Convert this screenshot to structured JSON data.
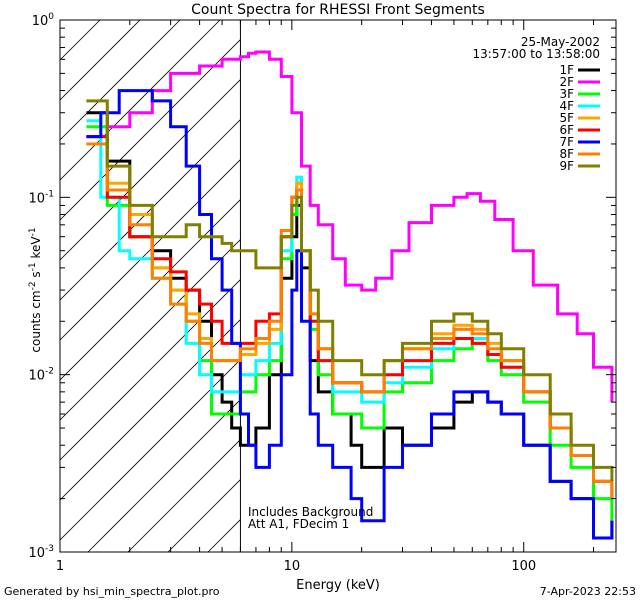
{
  "chart_data": {
    "type": "line",
    "title": "Count Spectra for RHESSI Front Segments",
    "xlabel": "Energy (keV)",
    "ylabel": "counts cm-2 s-1 keV-1",
    "ylabel_parts": {
      "base": "counts cm",
      "e1": "-2",
      "s": " s",
      "e2": "-1",
      "k": " keV",
      "e3": "-1"
    },
    "xscale": "log",
    "yscale": "log",
    "xlim": [
      1,
      250
    ],
    "ylim": [
      0.001,
      1
    ],
    "x_ticks": [
      {
        "value": 1,
        "label": "1"
      },
      {
        "value": 10,
        "label": "10"
      },
      {
        "value": 100,
        "label": "100"
      }
    ],
    "y_ticks": [
      {
        "value": 0.001,
        "base": "10",
        "exp": "-3"
      },
      {
        "value": 0.01,
        "base": "10",
        "exp": "-2"
      },
      {
        "value": 0.1,
        "base": "10",
        "exp": "-1"
      },
      {
        "value": 1,
        "base": "10",
        "exp": "0"
      }
    ],
    "date": "25-May-2002",
    "time_range": "13:57:00 to 13:58:00",
    "hatched_region_keV": [
      1,
      6
    ],
    "annotation_lines": [
      "Includes Background",
      "Att A1, FDecim 1"
    ],
    "legend_position": "top-right",
    "series": [
      {
        "name": "1F",
        "color": "#000000",
        "level": 0.2
      },
      {
        "name": "2F",
        "color": "#ff00ff",
        "level": 0.6
      },
      {
        "name": "3F",
        "color": "#00ff00",
        "level": 0.25
      },
      {
        "name": "4F",
        "color": "#00ffff",
        "level": 0.12
      },
      {
        "name": "5F",
        "color": "#ffa500",
        "level": 0.2
      },
      {
        "name": "6F",
        "color": "#ff0000",
        "level": 0.22
      },
      {
        "name": "7F",
        "color": "#0000ff",
        "level": 0.4
      },
      {
        "name": "8F",
        "color": "#ff8000",
        "level": 0.18
      },
      {
        "name": "9F",
        "color": "#808000",
        "level": 0.35
      }
    ],
    "series_points": {
      "1F": [
        [
          1.3,
          0.3
        ],
        [
          1.6,
          0.16
        ],
        [
          2,
          0.06
        ],
        [
          2.5,
          0.05
        ],
        [
          3,
          0.035
        ],
        [
          3.5,
          0.03
        ],
        [
          4,
          0.02
        ],
        [
          4.5,
          0.01
        ],
        [
          5,
          0.007
        ],
        [
          5.5,
          0.005
        ],
        [
          6,
          0.004
        ],
        [
          7,
          0.005
        ],
        [
          8,
          0.01
        ],
        [
          9,
          0.035
        ],
        [
          10,
          0.06
        ],
        [
          10.5,
          0.09
        ],
        [
          11,
          0.04
        ],
        [
          12,
          0.012
        ],
        [
          13,
          0.008
        ],
        [
          15,
          0.006
        ],
        [
          18,
          0.004
        ],
        [
          20,
          0.003
        ],
        [
          25,
          0.005
        ],
        [
          30,
          0.004
        ],
        [
          40,
          0.005
        ],
        [
          50,
          0.007
        ],
        [
          60,
          0.008
        ],
        [
          70,
          0.007
        ],
        [
          80,
          0.006
        ],
        [
          100,
          0.004
        ],
        [
          130,
          0.0025
        ],
        [
          160,
          0.002
        ],
        [
          200,
          0.0012
        ],
        [
          240,
          0.0015
        ]
      ],
      "2F": [
        [
          1.3,
          0.22
        ],
        [
          1.6,
          0.25
        ],
        [
          2,
          0.3
        ],
        [
          2.5,
          0.4
        ],
        [
          3,
          0.5
        ],
        [
          4,
          0.55
        ],
        [
          5,
          0.6
        ],
        [
          6,
          0.62
        ],
        [
          6.5,
          0.65
        ],
        [
          7,
          0.66
        ],
        [
          8,
          0.6
        ],
        [
          9,
          0.48
        ],
        [
          10,
          0.3
        ],
        [
          11,
          0.15
        ],
        [
          12,
          0.09
        ],
        [
          13,
          0.07
        ],
        [
          15,
          0.045
        ],
        [
          17,
          0.032
        ],
        [
          20,
          0.03
        ],
        [
          23,
          0.035
        ],
        [
          27,
          0.05
        ],
        [
          32,
          0.072
        ],
        [
          40,
          0.09
        ],
        [
          50,
          0.1
        ],
        [
          57,
          0.105
        ],
        [
          65,
          0.095
        ],
        [
          75,
          0.075
        ],
        [
          90,
          0.05
        ],
        [
          110,
          0.032
        ],
        [
          140,
          0.022
        ],
        [
          170,
          0.017
        ],
        [
          200,
          0.011
        ],
        [
          240,
          0.007
        ]
      ],
      "3F": [
        [
          1.3,
          0.25
        ],
        [
          1.6,
          0.09
        ],
        [
          2,
          0.06
        ],
        [
          2.5,
          0.04
        ],
        [
          3,
          0.03
        ],
        [
          3.5,
          0.02
        ],
        [
          4,
          0.012
        ],
        [
          4.5,
          0.006
        ],
        [
          5,
          0.006
        ],
        [
          6,
          0.008
        ],
        [
          7,
          0.01
        ],
        [
          8,
          0.012
        ],
        [
          9,
          0.045
        ],
        [
          10,
          0.08
        ],
        [
          10.5,
          0.12
        ],
        [
          11,
          0.05
        ],
        [
          12,
          0.018
        ],
        [
          13,
          0.01
        ],
        [
          15,
          0.006
        ],
        [
          20,
          0.005
        ],
        [
          25,
          0.008
        ],
        [
          30,
          0.009
        ],
        [
          40,
          0.012
        ],
        [
          50,
          0.014
        ],
        [
          60,
          0.015
        ],
        [
          70,
          0.012
        ],
        [
          80,
          0.01
        ],
        [
          100,
          0.007
        ],
        [
          130,
          0.004
        ],
        [
          160,
          0.003
        ],
        [
          200,
          0.002
        ],
        [
          240,
          0.0015
        ]
      ],
      "4F": [
        [
          1.3,
          0.27
        ],
        [
          1.5,
          0.1
        ],
        [
          1.8,
          0.05
        ],
        [
          2,
          0.045
        ],
        [
          2.5,
          0.035
        ],
        [
          3,
          0.025
        ],
        [
          3.5,
          0.015
        ],
        [
          4,
          0.01
        ],
        [
          4.5,
          0.008
        ],
        [
          5,
          0.008
        ],
        [
          6,
          0.01
        ],
        [
          7,
          0.012
        ],
        [
          8,
          0.015
        ],
        [
          9,
          0.05
        ],
        [
          10,
          0.09
        ],
        [
          10.5,
          0.13
        ],
        [
          11,
          0.05
        ],
        [
          12,
          0.02
        ],
        [
          13,
          0.012
        ],
        [
          15,
          0.008
        ],
        [
          20,
          0.007
        ],
        [
          25,
          0.009
        ],
        [
          30,
          0.011
        ],
        [
          40,
          0.014
        ],
        [
          50,
          0.016
        ],
        [
          60,
          0.016
        ],
        [
          70,
          0.013
        ],
        [
          80,
          0.011
        ],
        [
          100,
          0.008
        ],
        [
          130,
          0.005
        ],
        [
          160,
          0.0035
        ],
        [
          200,
          0.0025
        ],
        [
          240,
          0.002
        ]
      ],
      "5F": [
        [
          1.3,
          0.2
        ],
        [
          1.6,
          0.12
        ],
        [
          2,
          0.08
        ],
        [
          2.5,
          0.04
        ],
        [
          3,
          0.03
        ],
        [
          3.5,
          0.022
        ],
        [
          4,
          0.016
        ],
        [
          4.5,
          0.012
        ],
        [
          5,
          0.012
        ],
        [
          6,
          0.013
        ],
        [
          7,
          0.015
        ],
        [
          8,
          0.018
        ],
        [
          9,
          0.06
        ],
        [
          10,
          0.1
        ],
        [
          10.5,
          0.12
        ],
        [
          11,
          0.05
        ],
        [
          12,
          0.022
        ],
        [
          13,
          0.014
        ],
        [
          15,
          0.009
        ],
        [
          20,
          0.008
        ],
        [
          25,
          0.012
        ],
        [
          30,
          0.014
        ],
        [
          40,
          0.017
        ],
        [
          50,
          0.019
        ],
        [
          60,
          0.018
        ],
        [
          70,
          0.015
        ],
        [
          80,
          0.012
        ],
        [
          100,
          0.008
        ],
        [
          130,
          0.005
        ],
        [
          160,
          0.0035
        ],
        [
          200,
          0.0025
        ],
        [
          240,
          0.002
        ]
      ],
      "6F": [
        [
          1.3,
          0.22
        ],
        [
          1.6,
          0.1
        ],
        [
          2,
          0.06
        ],
        [
          2.5,
          0.045
        ],
        [
          3,
          0.038
        ],
        [
          3.5,
          0.03
        ],
        [
          4,
          0.025
        ],
        [
          4.5,
          0.02
        ],
        [
          5,
          0.015
        ],
        [
          6,
          0.015
        ],
        [
          7,
          0.02
        ],
        [
          8,
          0.022
        ],
        [
          9,
          0.06
        ],
        [
          10,
          0.1
        ],
        [
          10.5,
          0.11
        ],
        [
          11,
          0.05
        ],
        [
          12,
          0.02
        ],
        [
          13,
          0.012
        ],
        [
          15,
          0.009
        ],
        [
          20,
          0.008
        ],
        [
          25,
          0.01
        ],
        [
          30,
          0.012
        ],
        [
          40,
          0.015
        ],
        [
          50,
          0.016
        ],
        [
          60,
          0.015
        ],
        [
          70,
          0.013
        ],
        [
          80,
          0.011
        ],
        [
          100,
          0.008
        ],
        [
          130,
          0.005
        ],
        [
          160,
          0.0035
        ],
        [
          200,
          0.0025
        ],
        [
          240,
          0.002
        ]
      ],
      "7F": [
        [
          1.3,
          0.22
        ],
        [
          1.5,
          0.3
        ],
        [
          1.8,
          0.4
        ],
        [
          2,
          0.4
        ],
        [
          2.5,
          0.35
        ],
        [
          3,
          0.25
        ],
        [
          3.5,
          0.15
        ],
        [
          4,
          0.08
        ],
        [
          4.5,
          0.045
        ],
        [
          5,
          0.03
        ],
        [
          5.5,
          0.015
        ],
        [
          6,
          0.006
        ],
        [
          6.5,
          0.004
        ],
        [
          7,
          0.003
        ],
        [
          8,
          0.004
        ],
        [
          9,
          0.01
        ],
        [
          10,
          0.03
        ],
        [
          10.5,
          0.05
        ],
        [
          11,
          0.02
        ],
        [
          12,
          0.006
        ],
        [
          13,
          0.004
        ],
        [
          15,
          0.003
        ],
        [
          18,
          0.002
        ],
        [
          20,
          0.0015
        ],
        [
          25,
          0.003
        ],
        [
          30,
          0.004
        ],
        [
          40,
          0.006
        ],
        [
          50,
          0.008
        ],
        [
          60,
          0.008
        ],
        [
          70,
          0.007
        ],
        [
          80,
          0.006
        ],
        [
          100,
          0.004
        ],
        [
          130,
          0.0025
        ],
        [
          160,
          0.002
        ],
        [
          200,
          0.0012
        ],
        [
          240,
          0.0015
        ]
      ],
      "8F": [
        [
          1.3,
          0.2
        ],
        [
          1.6,
          0.11
        ],
        [
          2,
          0.07
        ],
        [
          2.5,
          0.035
        ],
        [
          3,
          0.025
        ],
        [
          3.5,
          0.02
        ],
        [
          4,
          0.015
        ],
        [
          4.5,
          0.012
        ],
        [
          5,
          0.012
        ],
        [
          6,
          0.014
        ],
        [
          7,
          0.016
        ],
        [
          8,
          0.02
        ],
        [
          9,
          0.065
        ],
        [
          10,
          0.1
        ],
        [
          10.5,
          0.11
        ],
        [
          11,
          0.05
        ],
        [
          12,
          0.022
        ],
        [
          13,
          0.014
        ],
        [
          15,
          0.009
        ],
        [
          20,
          0.008
        ],
        [
          25,
          0.012
        ],
        [
          30,
          0.014
        ],
        [
          40,
          0.016
        ],
        [
          50,
          0.018
        ],
        [
          60,
          0.017
        ],
        [
          70,
          0.014
        ],
        [
          80,
          0.012
        ],
        [
          100,
          0.008
        ],
        [
          130,
          0.005
        ],
        [
          160,
          0.0035
        ],
        [
          200,
          0.0025
        ],
        [
          240,
          0.002
        ]
      ],
      "9F": [
        [
          1.3,
          0.35
        ],
        [
          1.6,
          0.15
        ],
        [
          2,
          0.09
        ],
        [
          2.5,
          0.06
        ],
        [
          3,
          0.06
        ],
        [
          3.5,
          0.07
        ],
        [
          4,
          0.06
        ],
        [
          4.5,
          0.06
        ],
        [
          5,
          0.055
        ],
        [
          5.5,
          0.05
        ],
        [
          6,
          0.05
        ],
        [
          7,
          0.04
        ],
        [
          8,
          0.04
        ],
        [
          9,
          0.06
        ],
        [
          10,
          0.09
        ],
        [
          10.5,
          0.1
        ],
        [
          11,
          0.05
        ],
        [
          12,
          0.03
        ],
        [
          13,
          0.02
        ],
        [
          15,
          0.012
        ],
        [
          20,
          0.01
        ],
        [
          25,
          0.012
        ],
        [
          30,
          0.015
        ],
        [
          40,
          0.02
        ],
        [
          50,
          0.022
        ],
        [
          60,
          0.02
        ],
        [
          70,
          0.017
        ],
        [
          80,
          0.014
        ],
        [
          100,
          0.01
        ],
        [
          130,
          0.006
        ],
        [
          160,
          0.004
        ],
        [
          200,
          0.003
        ],
        [
          240,
          0.0025
        ]
      ]
    }
  },
  "footer": {
    "left": "Generated by hsi_min_spectra_plot.pro",
    "right": "7-Apr-2023 22:53"
  }
}
